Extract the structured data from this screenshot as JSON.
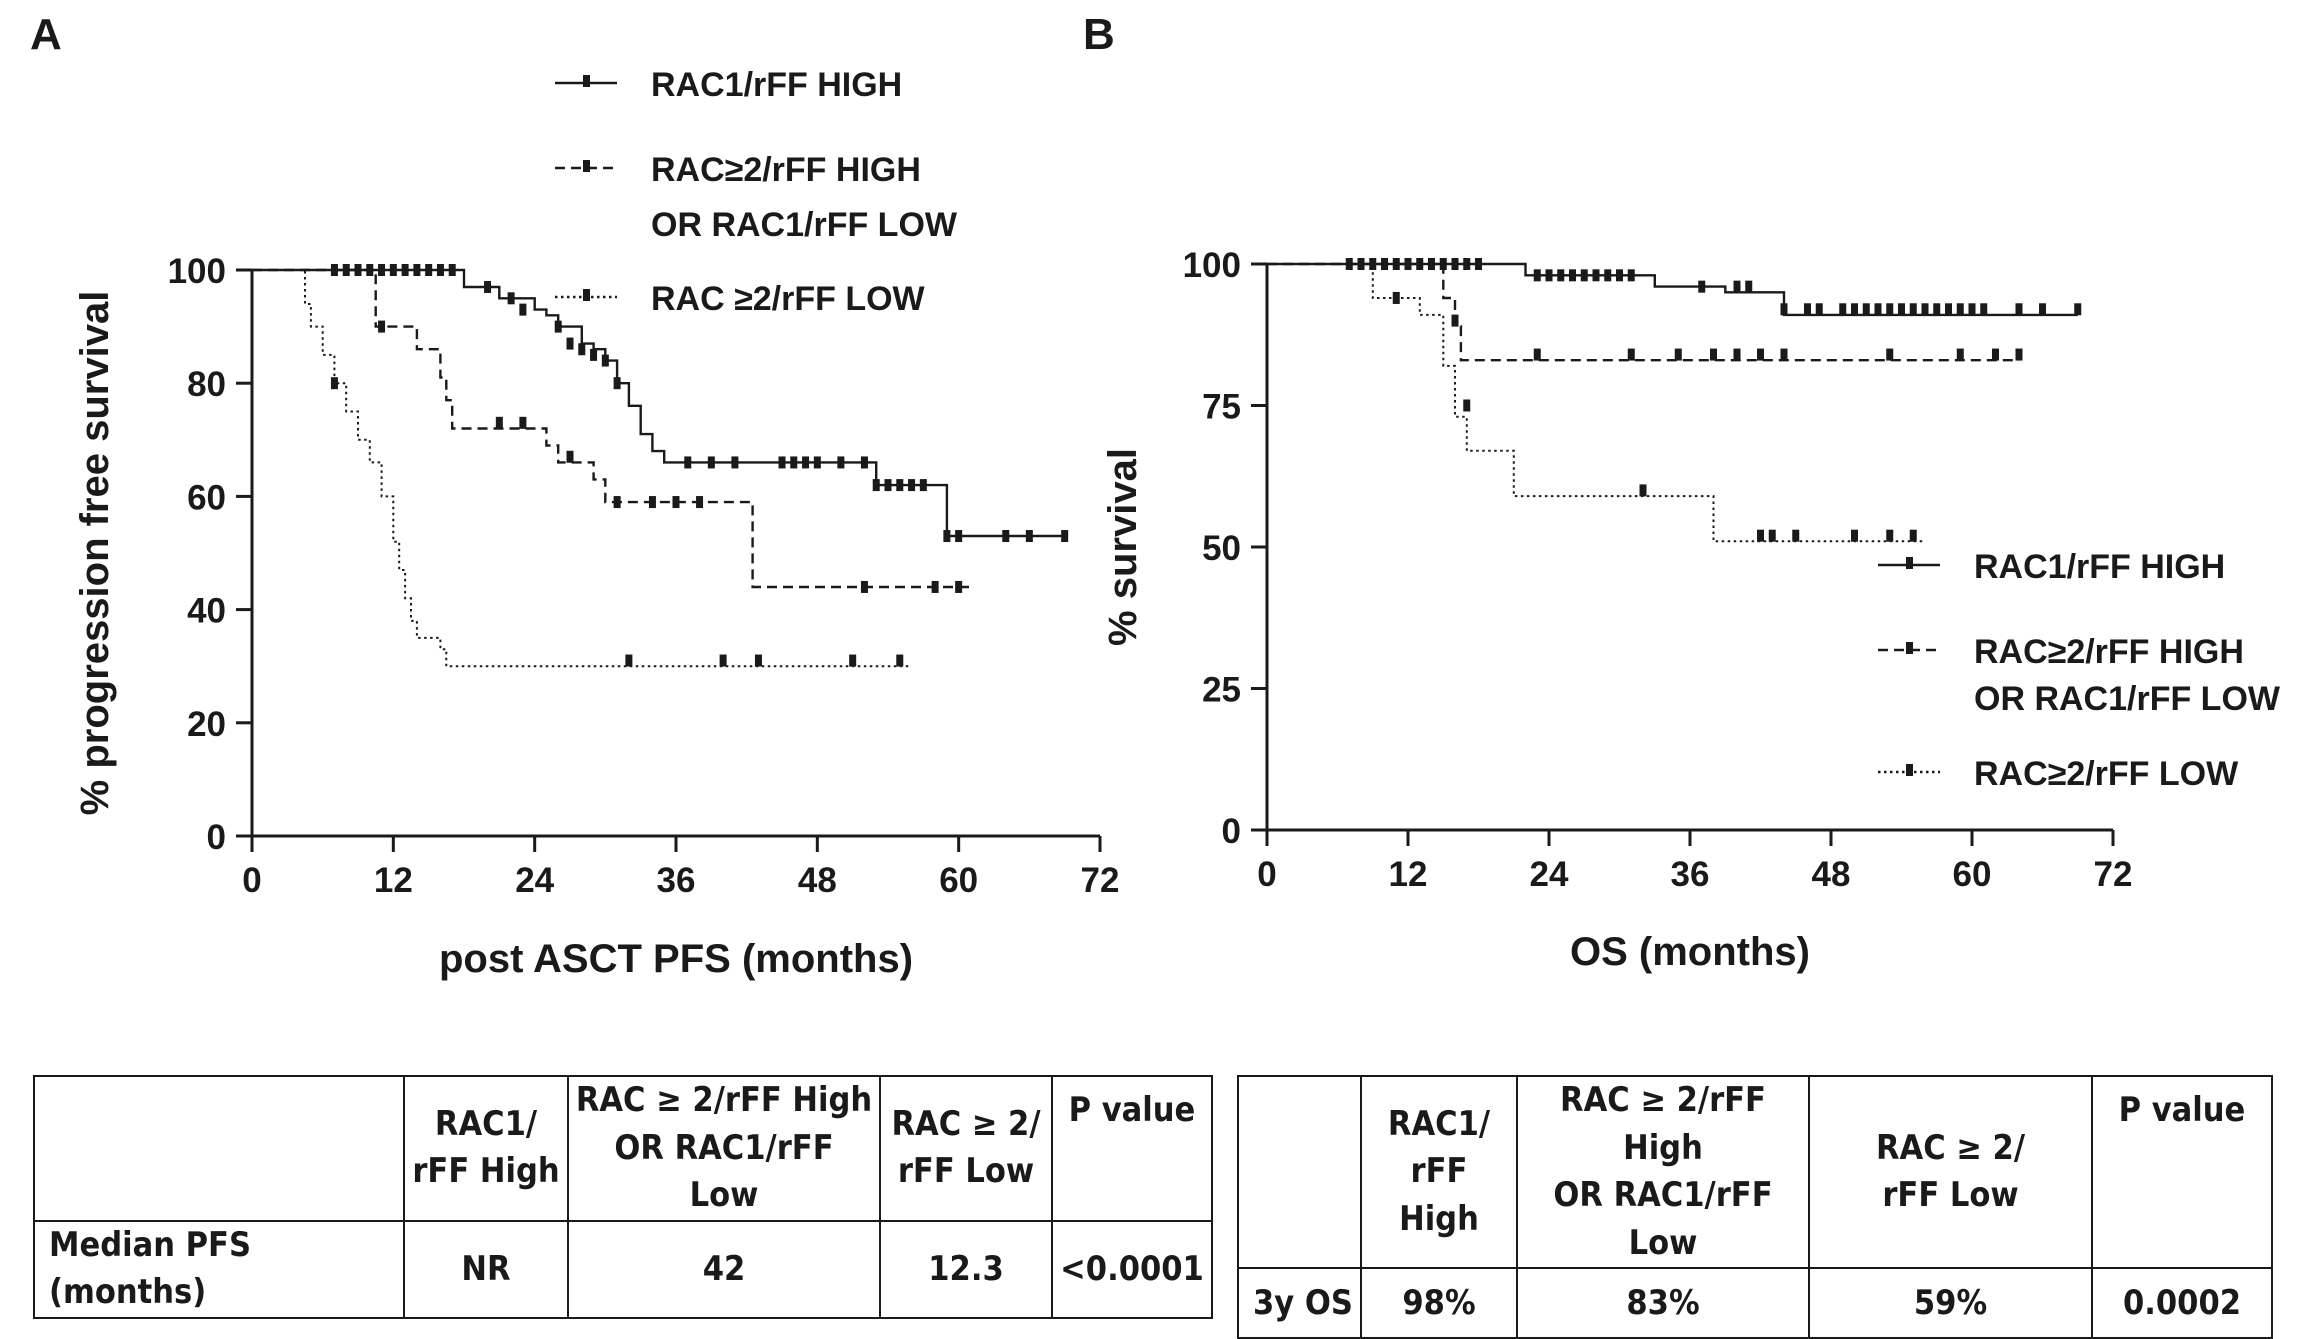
{
  "panel_labels": {
    "a": "A",
    "b": "B"
  },
  "colors": {
    "ink": "#1a1a1a"
  },
  "chart_data": [
    {
      "type": "line",
      "subtype": "kaplan-meier",
      "panel": "A",
      "xlabel": "post ASCT PFS (months)",
      "ylabel": "% progression free survival",
      "xlim": [
        0,
        72
      ],
      "ylim": [
        0,
        100
      ],
      "xticks": [
        "0",
        "12",
        "24",
        "36",
        "48",
        "60",
        "72"
      ],
      "yticks": [
        "0",
        "20",
        "40",
        "60",
        "80",
        "100"
      ],
      "grid": false,
      "legend_position": "top-right",
      "series": [
        {
          "name": "RAC1/rFF HIGH",
          "line_style": "solid",
          "steps": [
            [
              0,
              100
            ],
            [
              17,
              100
            ],
            [
              18,
              97
            ],
            [
              21,
              95
            ],
            [
              24,
              93
            ],
            [
              25,
              92
            ],
            [
              26,
              90
            ],
            [
              28,
              87
            ],
            [
              29,
              86
            ],
            [
              30,
              84
            ],
            [
              31,
              80
            ],
            [
              32,
              76
            ],
            [
              33,
              71
            ],
            [
              34,
              68
            ],
            [
              35,
              66
            ],
            [
              52,
              66
            ],
            [
              53,
              62
            ],
            [
              58,
              62
            ],
            [
              59,
              53
            ],
            [
              69,
              53
            ]
          ],
          "censored": [
            [
              7,
              100
            ],
            [
              8,
              100
            ],
            [
              9,
              100
            ],
            [
              10,
              100
            ],
            [
              11,
              100
            ],
            [
              12,
              100
            ],
            [
              13,
              100
            ],
            [
              14,
              100
            ],
            [
              15,
              100
            ],
            [
              16,
              100
            ],
            [
              17,
              100
            ],
            [
              20,
              97
            ],
            [
              22,
              95
            ],
            [
              23,
              93
            ],
            [
              26,
              90
            ],
            [
              27,
              87
            ],
            [
              28,
              86
            ],
            [
              29,
              85
            ],
            [
              30,
              84
            ],
            [
              31,
              80
            ],
            [
              37,
              66
            ],
            [
              39,
              66
            ],
            [
              41,
              66
            ],
            [
              45,
              66
            ],
            [
              46,
              66
            ],
            [
              47,
              66
            ],
            [
              48,
              66
            ],
            [
              50,
              66
            ],
            [
              52,
              66
            ],
            [
              53,
              62
            ],
            [
              54,
              62
            ],
            [
              55,
              62
            ],
            [
              56,
              62
            ],
            [
              57,
              62
            ],
            [
              59,
              53
            ],
            [
              60,
              53
            ],
            [
              64,
              53
            ],
            [
              66,
              53
            ],
            [
              69,
              53
            ]
          ]
        },
        {
          "name": "RAC≥2/rFF HIGH OR RAC1/rFF LOW",
          "line_style": "dashed",
          "steps": [
            [
              0,
              100
            ],
            [
              10,
              100
            ],
            [
              10.5,
              90
            ],
            [
              14,
              86
            ],
            [
              16,
              81
            ],
            [
              16.5,
              77
            ],
            [
              17,
              72
            ],
            [
              24,
              72
            ],
            [
              25,
              69
            ],
            [
              26,
              66
            ],
            [
              28,
              66
            ],
            [
              29,
              63
            ],
            [
              30,
              59
            ],
            [
              42,
              59
            ],
            [
              42.5,
              44
            ],
            [
              61,
              44
            ]
          ],
          "censored": [
            [
              11,
              90
            ],
            [
              21,
              73
            ],
            [
              23,
              73
            ],
            [
              27,
              67
            ],
            [
              31,
              59
            ],
            [
              34,
              59
            ],
            [
              36,
              59
            ],
            [
              38,
              59
            ],
            [
              52,
              44
            ],
            [
              58,
              44
            ],
            [
              60,
              44
            ]
          ]
        },
        {
          "name": "RAC ≥2/rFF LOW",
          "line_style": "dotted",
          "steps": [
            [
              0,
              100
            ],
            [
              4,
              100
            ],
            [
              4.5,
              94
            ],
            [
              5,
              90
            ],
            [
              6,
              85
            ],
            [
              7,
              80
            ],
            [
              8,
              75
            ],
            [
              9,
              70
            ],
            [
              10,
              66
            ],
            [
              11,
              60
            ],
            [
              12,
              52
            ],
            [
              12.5,
              47
            ],
            [
              13,
              42
            ],
            [
              13.5,
              38
            ],
            [
              14,
              35
            ],
            [
              16,
              33
            ],
            [
              16.5,
              30
            ],
            [
              56,
              30
            ]
          ],
          "censored": [
            [
              7,
              80
            ],
            [
              32,
              31
            ],
            [
              40,
              31
            ],
            [
              43,
              31
            ],
            [
              51,
              31
            ],
            [
              55,
              31
            ]
          ]
        }
      ]
    },
    {
      "type": "line",
      "subtype": "kaplan-meier",
      "panel": "B",
      "xlabel": "OS (months)",
      "ylabel": "% survival",
      "xlim": [
        0,
        72
      ],
      "ylim": [
        0,
        100
      ],
      "xticks": [
        "0",
        "12",
        "24",
        "36",
        "48",
        "60",
        "72"
      ],
      "yticks": [
        "0",
        "25",
        "50",
        "75",
        "100"
      ],
      "grid": false,
      "legend_position": "bottom-right",
      "series": [
        {
          "name": "RAC1/rFF HIGH",
          "line_style": "solid",
          "steps": [
            [
              0,
              100
            ],
            [
              21,
              100
            ],
            [
              22,
              98
            ],
            [
              32,
              98
            ],
            [
              33,
              96
            ],
            [
              38,
              96
            ],
            [
              39,
              95
            ],
            [
              43,
              95
            ],
            [
              44,
              91
            ],
            [
              69,
              91
            ]
          ],
          "censored": [
            [
              7,
              100
            ],
            [
              8,
              100
            ],
            [
              9,
              100
            ],
            [
              10,
              100
            ],
            [
              11,
              100
            ],
            [
              12,
              100
            ],
            [
              13,
              100
            ],
            [
              14,
              100
            ],
            [
              15,
              100
            ],
            [
              16,
              100
            ],
            [
              17,
              100
            ],
            [
              18,
              100
            ],
            [
              23,
              98
            ],
            [
              24,
              98
            ],
            [
              25,
              98
            ],
            [
              26,
              98
            ],
            [
              27,
              98
            ],
            [
              28,
              98
            ],
            [
              29,
              98
            ],
            [
              30,
              98
            ],
            [
              31,
              98
            ],
            [
              37,
              96
            ],
            [
              40,
              96
            ],
            [
              41,
              96
            ],
            [
              44,
              92
            ],
            [
              46,
              92
            ],
            [
              47,
              92
            ],
            [
              49,
              92
            ],
            [
              50,
              92
            ],
            [
              51,
              92
            ],
            [
              52,
              92
            ],
            [
              53,
              92
            ],
            [
              54,
              92
            ],
            [
              55,
              92
            ],
            [
              56,
              92
            ],
            [
              57,
              92
            ],
            [
              58,
              92
            ],
            [
              59,
              92
            ],
            [
              60,
              92
            ],
            [
              61,
              92
            ],
            [
              64,
              92
            ],
            [
              66,
              92
            ],
            [
              69,
              92
            ]
          ]
        },
        {
          "name": "RAC≥2/rFF HIGH OR RAC1/rFF LOW",
          "line_style": "dashed",
          "steps": [
            [
              0,
              100
            ],
            [
              14.5,
              100
            ],
            [
              15,
              94
            ],
            [
              16,
              89
            ],
            [
              16.5,
              83
            ],
            [
              64,
              83
            ]
          ],
          "censored": [
            [
              16,
              90
            ],
            [
              23,
              84
            ],
            [
              31,
              84
            ],
            [
              35,
              84
            ],
            [
              38,
              84
            ],
            [
              40,
              84
            ],
            [
              42,
              84
            ],
            [
              44,
              84
            ],
            [
              53,
              84
            ],
            [
              59,
              84
            ],
            [
              62,
              84
            ],
            [
              64,
              84
            ]
          ]
        },
        {
          "name": "RAC≥2/rFF LOW",
          "line_style": "dotted",
          "steps": [
            [
              0,
              100
            ],
            [
              8,
              100
            ],
            [
              9,
              94
            ],
            [
              12,
              94
            ],
            [
              13,
              91
            ],
            [
              15,
              82
            ],
            [
              16,
              73
            ],
            [
              17,
              67
            ],
            [
              20,
              67
            ],
            [
              21,
              59
            ],
            [
              37,
              59
            ],
            [
              38,
              51
            ],
            [
              56,
              51
            ]
          ],
          "censored": [
            [
              11,
              94
            ],
            [
              17,
              75
            ],
            [
              32,
              60
            ],
            [
              42,
              52
            ],
            [
              43,
              52
            ],
            [
              45,
              52
            ],
            [
              50,
              52
            ],
            [
              53,
              52
            ],
            [
              55,
              52
            ]
          ]
        }
      ]
    }
  ],
  "tables": {
    "pfs": {
      "headers": [
        "",
        "RAC1/\nrFF High",
        "RAC ≥ 2/rFF High\nOR RAC1/rFF Low",
        "RAC ≥ 2/\nrFF Low",
        "P value"
      ],
      "row": [
        "Median PFS (months)",
        "NR",
        "42",
        "12.3",
        "<0.0001"
      ]
    },
    "os": {
      "headers": [
        "",
        "RAC1/\nrFF High",
        "RAC ≥ 2/rFF High\nOR RAC1/rFF Low",
        "RAC ≥ 2/\nrFF Low",
        "P value"
      ],
      "row": [
        "3y OS",
        "98%",
        "83%",
        "59%",
        "0.0002"
      ]
    }
  }
}
